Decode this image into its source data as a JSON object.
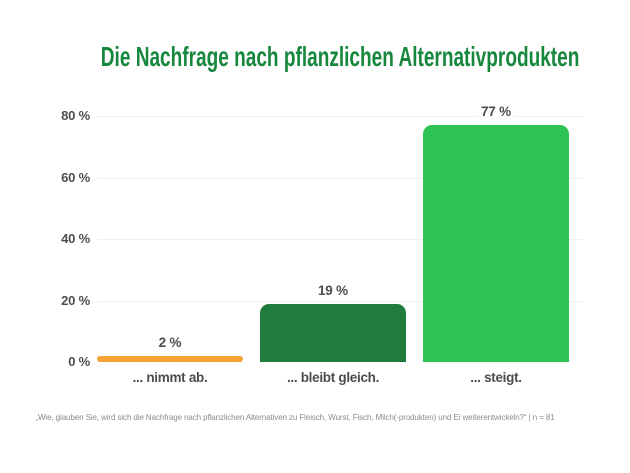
{
  "colors": {
    "background": "#FFFFFF",
    "title": "#17873D",
    "axis_label": "#4D4D4D",
    "gridline": "#EFEFEF",
    "footnote": "#8C8C8C"
  },
  "chart_data": {
    "type": "bar",
    "title": "Die Nachfrage nach pflanzlichen Alternativprodukten",
    "categories": [
      "... nimmt ab.",
      "... bleibt gleich.",
      "... steigt."
    ],
    "values": [
      2,
      19,
      77
    ],
    "value_labels": [
      "2 %",
      "19 %",
      "77 %"
    ],
    "bar_colors": [
      "#F5A433",
      "#1F7C3D",
      "#2FC355"
    ],
    "yticks_values": [
      0,
      20,
      40,
      60,
      80
    ],
    "ytick_labels": [
      "0 %",
      "20 %",
      "40 %",
      "60 %",
      "80 %"
    ],
    "ylim": [
      0,
      80
    ],
    "grid": true,
    "legend": "none",
    "footnote": "„Wie, glauben Sie, wird sich die Nachfrage nach pflanzlichen Alternativen zu Fleisch, Wurst, Fisch, Milch(-produkten) und Ei weiterentwickeln?“ | n = 81"
  }
}
